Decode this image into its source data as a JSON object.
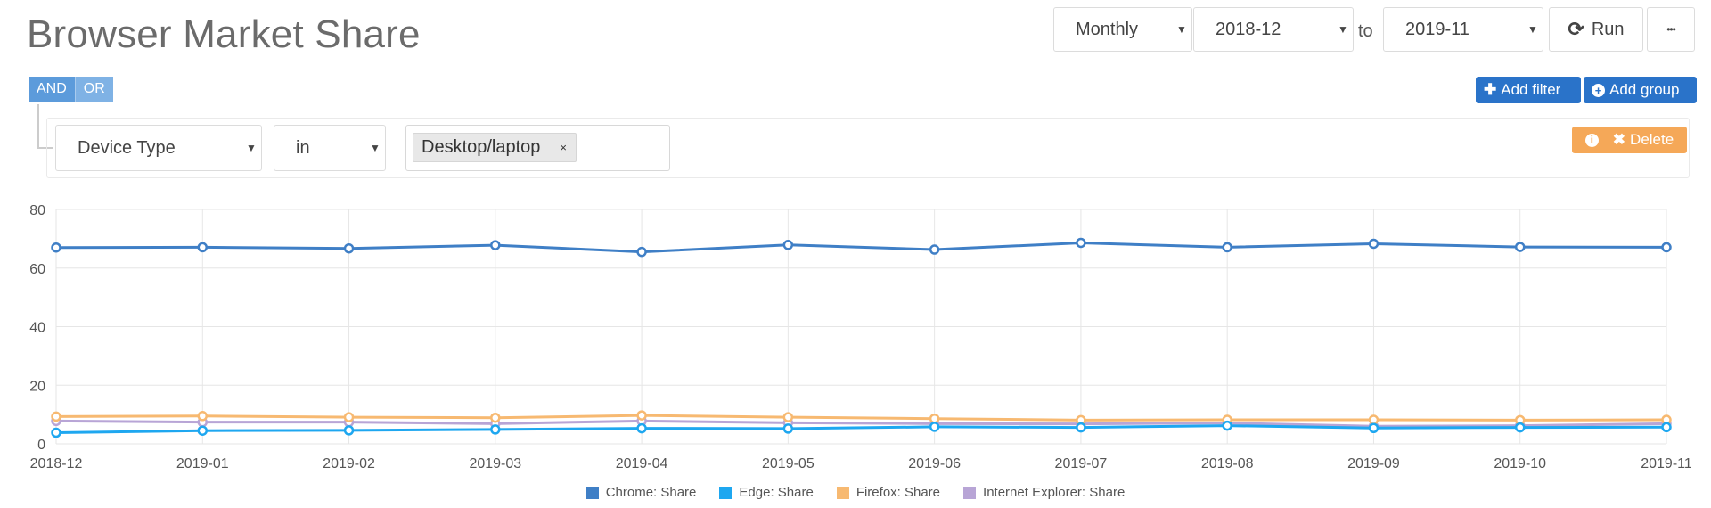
{
  "header": {
    "title": "Browser Market Share"
  },
  "controls": {
    "interval": "Monthly",
    "from": "2018-12",
    "to_label": "to",
    "to": "2019-11",
    "run_label": "Run",
    "more_label": "•••"
  },
  "logic": {
    "and_label": "AND",
    "or_label": "OR",
    "active": "AND"
  },
  "actions": {
    "add_filter": "Add filter",
    "add_group": "Add group",
    "delete": "Delete"
  },
  "filter": {
    "field": "Device Type",
    "operator": "in",
    "values": [
      "Desktop/laptop"
    ],
    "remove_symbol": "×"
  },
  "icons": [
    "refresh-icon",
    "plus-icon",
    "plus-circle-icon",
    "info-icon",
    "times-icon",
    "caret-down-icon",
    "ellipsis-icon"
  ],
  "colors": {
    "chrome": "#3f7fc6",
    "edge": "#1ea7f0",
    "firefox": "#f7b971",
    "ie": "#b8a5d6",
    "accent_blue": "#2a73c9",
    "delete_orange": "#f5a858"
  },
  "chart_data": {
    "type": "line",
    "x": [
      "2018-12",
      "2019-01",
      "2019-02",
      "2019-03",
      "2019-04",
      "2019-05",
      "2019-06",
      "2019-07",
      "2019-08",
      "2019-09",
      "2019-10",
      "2019-11"
    ],
    "ylim": [
      0,
      80
    ],
    "yticks": [
      0,
      20,
      40,
      60,
      80
    ],
    "grid": true,
    "legend_position": "bottom",
    "series": [
      {
        "name": "Chrome: Share",
        "color": "#3f7fc6",
        "values": [
          67.0,
          67.1,
          66.7,
          67.8,
          65.5,
          67.9,
          66.3,
          68.6,
          67.1,
          68.3,
          67.2,
          67.1
        ]
      },
      {
        "name": "Edge: Share",
        "color": "#1ea7f0",
        "values": [
          3.8,
          4.5,
          4.6,
          4.9,
          5.3,
          5.2,
          5.8,
          5.6,
          6.2,
          5.4,
          5.6,
          5.7
        ]
      },
      {
        "name": "Firefox: Share",
        "color": "#f7b971",
        "values": [
          9.3,
          9.5,
          9.1,
          8.9,
          9.7,
          9.1,
          8.6,
          8.1,
          8.2,
          8.2,
          8.1,
          8.2
        ]
      },
      {
        "name": "Internet Explorer: Share",
        "color": "#b8a5d6",
        "values": [
          7.8,
          7.4,
          7.4,
          6.9,
          7.8,
          7.2,
          6.9,
          6.8,
          7.1,
          6.0,
          6.2,
          6.9
        ]
      }
    ]
  }
}
